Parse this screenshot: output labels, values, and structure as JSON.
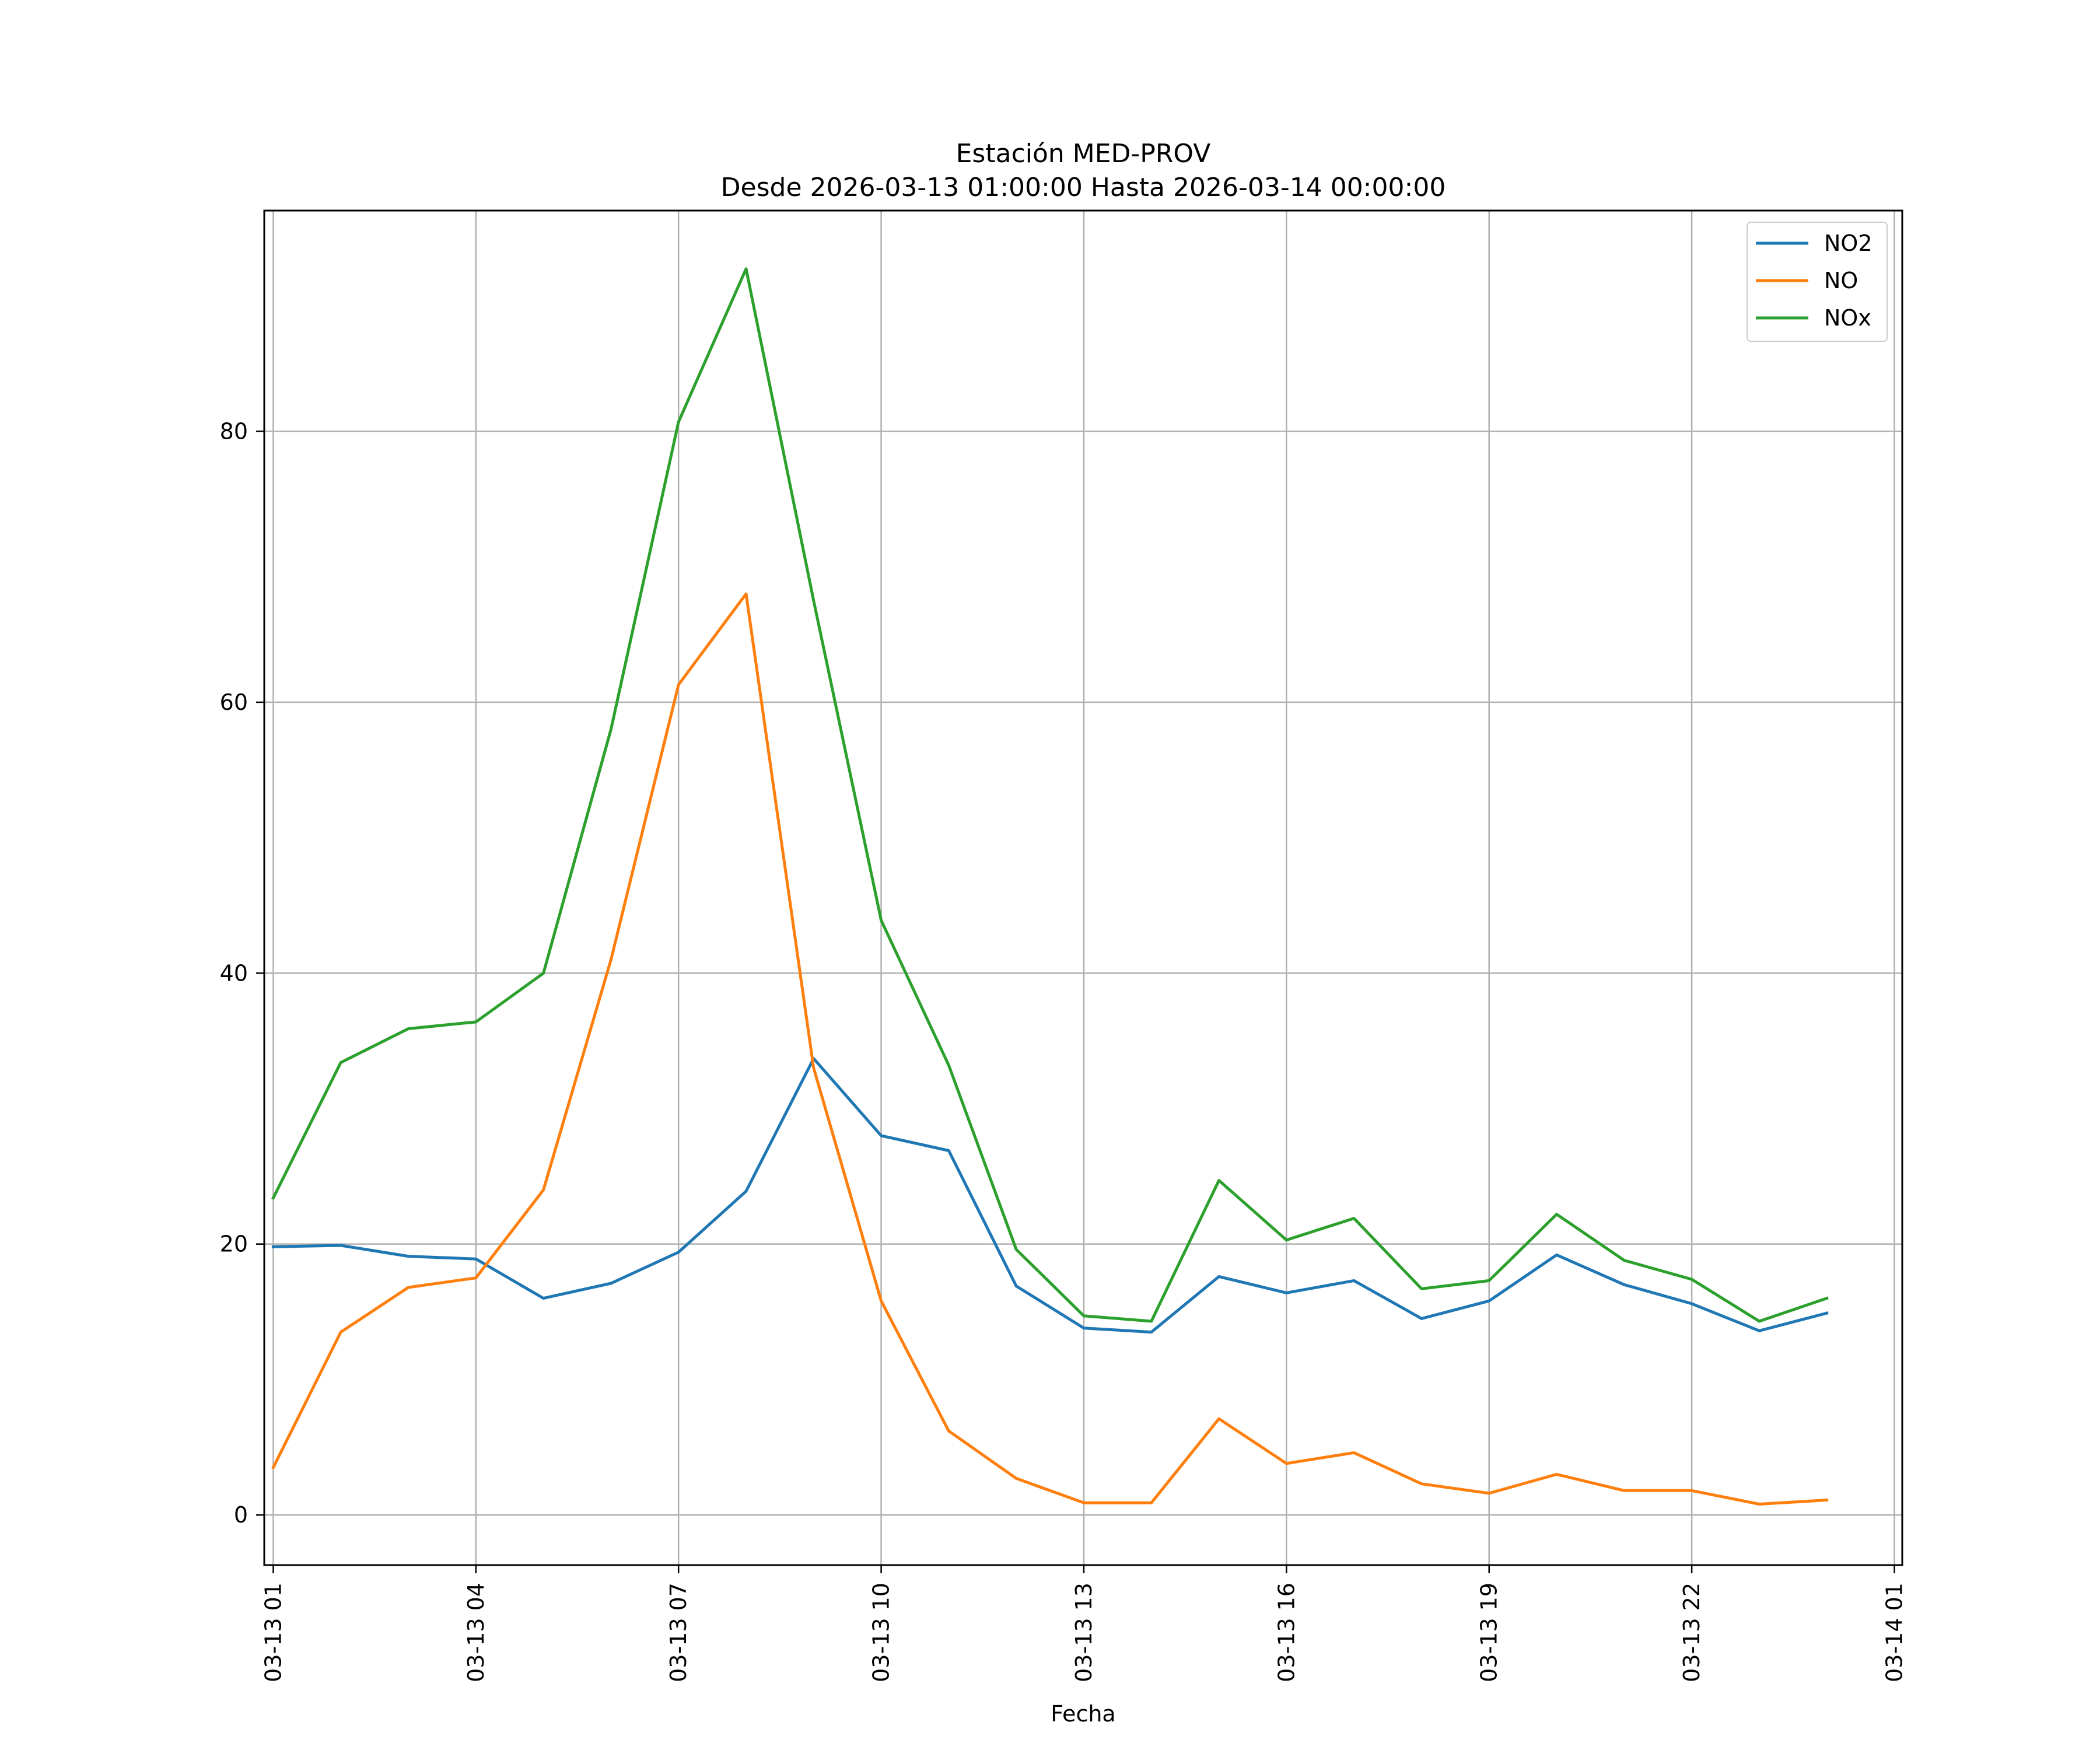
{
  "chart_data": {
    "type": "line",
    "title": "Estación MED-PROV",
    "subtitle": "Desde 2026-03-13 01:00:00 Hasta 2026-03-14 00:00:00",
    "xlabel": "Fecha",
    "ylabel": "",
    "x": [
      "2026-03-13 01:00",
      "2026-03-13 02:00",
      "2026-03-13 03:00",
      "2026-03-13 04:00",
      "2026-03-13 05:00",
      "2026-03-13 06:00",
      "2026-03-13 07:00",
      "2026-03-13 08:00",
      "2026-03-13 09:00",
      "2026-03-13 10:00",
      "2026-03-13 11:00",
      "2026-03-13 12:00",
      "2026-03-13 13:00",
      "2026-03-13 14:00",
      "2026-03-13 15:00",
      "2026-03-13 16:00",
      "2026-03-13 17:00",
      "2026-03-13 18:00",
      "2026-03-13 19:00",
      "2026-03-13 20:00",
      "2026-03-13 21:00",
      "2026-03-13 22:00",
      "2026-03-13 23:00",
      "2026-03-14 00:00"
    ],
    "xlim": [
      "2026-03-13 00:52",
      "2026-03-14 01:07"
    ],
    "ylim": [
      -3.7,
      96.3
    ],
    "xticks": [
      {
        "value": "2026-03-13 01:00",
        "label": "03-13 01"
      },
      {
        "value": "2026-03-13 04:00",
        "label": "03-13 04"
      },
      {
        "value": "2026-03-13 07:00",
        "label": "03-13 07"
      },
      {
        "value": "2026-03-13 10:00",
        "label": "03-13 10"
      },
      {
        "value": "2026-03-13 13:00",
        "label": "03-13 13"
      },
      {
        "value": "2026-03-13 16:00",
        "label": "03-13 16"
      },
      {
        "value": "2026-03-13 19:00",
        "label": "03-13 19"
      },
      {
        "value": "2026-03-13 22:00",
        "label": "03-13 22"
      },
      {
        "value": "2026-03-14 01:00",
        "label": "03-14 01"
      }
    ],
    "yticks": [
      {
        "value": 0,
        "label": "0"
      },
      {
        "value": 20,
        "label": "20"
      },
      {
        "value": 40,
        "label": "40"
      },
      {
        "value": 60,
        "label": "60"
      },
      {
        "value": 80,
        "label": "80"
      }
    ],
    "grid": true,
    "legend_position": "top-right",
    "series": [
      {
        "name": "NO2",
        "color": "#1f77b4",
        "values": [
          19.8,
          19.9,
          19.1,
          18.9,
          16.0,
          17.1,
          19.4,
          23.9,
          33.7,
          28.0,
          26.9,
          16.9,
          13.8,
          13.5,
          17.6,
          16.4,
          17.3,
          14.5,
          15.8,
          19.2,
          17.0,
          15.6,
          13.6,
          14.9
        ]
      },
      {
        "name": "NO",
        "color": "#ff7f0e",
        "values": [
          3.5,
          13.5,
          16.8,
          17.5,
          24.0,
          41.0,
          61.3,
          68.0,
          33.0,
          15.8,
          6.2,
          2.7,
          0.9,
          0.9,
          7.1,
          3.8,
          4.6,
          2.3,
          1.6,
          3.0,
          1.8,
          1.8,
          0.8,
          1.1
        ]
      },
      {
        "name": "NOx",
        "color": "#2ca02c",
        "values": [
          23.4,
          33.4,
          35.9,
          36.4,
          40.0,
          58.0,
          80.7,
          92.0,
          67.5,
          43.9,
          33.2,
          19.6,
          14.7,
          14.3,
          24.7,
          20.3,
          21.9,
          16.7,
          17.3,
          22.2,
          18.8,
          17.4,
          14.3,
          16.0
        ]
      }
    ]
  }
}
